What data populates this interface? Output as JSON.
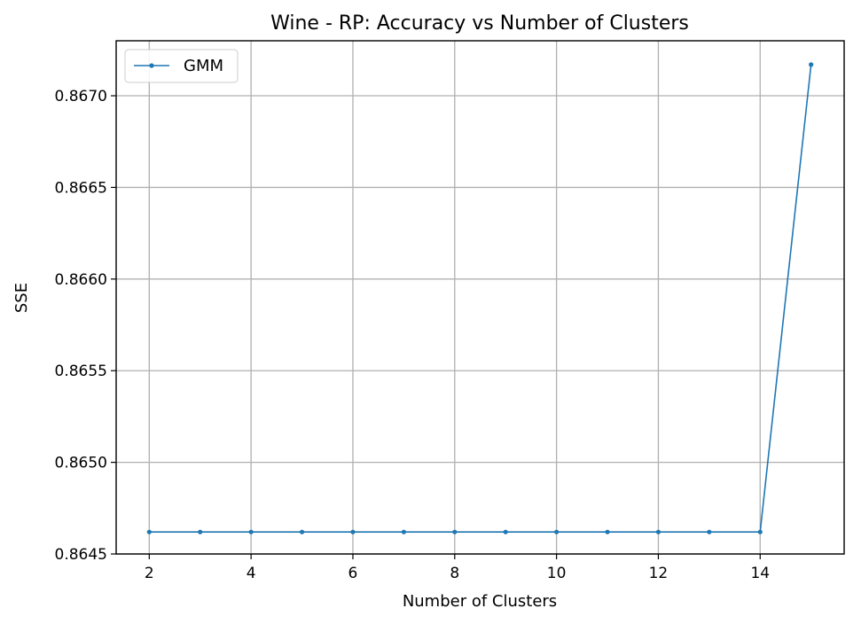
{
  "chart_data": {
    "type": "line",
    "title": "Wine - RP: Accuracy vs Number of Clusters",
    "xlabel": "Number of Clusters",
    "ylabel": "SSE",
    "xlim": [
      1.35,
      15.65
    ],
    "ylim": [
      0.8645,
      0.8673
    ],
    "xticks": [
      2,
      4,
      6,
      8,
      10,
      12,
      14
    ],
    "yticks": [
      0.8645,
      0.865,
      0.8655,
      0.866,
      0.8665,
      0.867
    ],
    "ytick_labels": [
      "0.8645",
      "0.8650",
      "0.8655",
      "0.8660",
      "0.8665",
      "0.8670"
    ],
    "grid": true,
    "legend_position": "upper-left",
    "series": [
      {
        "name": "GMM",
        "color": "#1f77b4",
        "marker": "circle",
        "x": [
          2,
          3,
          4,
          5,
          6,
          7,
          8,
          9,
          10,
          11,
          12,
          13,
          14,
          15
        ],
        "values": [
          0.86462,
          0.86462,
          0.86462,
          0.86462,
          0.86462,
          0.86462,
          0.86462,
          0.86462,
          0.86462,
          0.86462,
          0.86462,
          0.86462,
          0.86462,
          0.86717
        ]
      }
    ]
  }
}
